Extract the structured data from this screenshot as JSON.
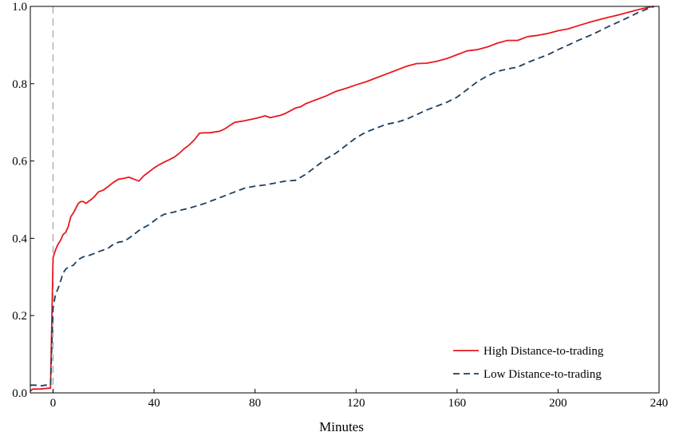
{
  "chart_data": {
    "type": "line",
    "title": "",
    "xlabel": "Minutes",
    "ylabel": "",
    "xlim": [
      -9,
      240
    ],
    "ylim": [
      0.0,
      1.0
    ],
    "xticks": [
      0,
      40,
      80,
      120,
      160,
      200,
      240
    ],
    "xtick_labels": [
      "0",
      "40",
      "80",
      "120",
      "160",
      "200",
      "240"
    ],
    "yticks": [
      0.0,
      0.2,
      0.4,
      0.6,
      0.8,
      1.0
    ],
    "ytick_labels": [
      "0.0",
      "0.2",
      "0.4",
      "0.6",
      "0.8",
      "1.0"
    ],
    "grid": false,
    "reference_line_x": 0,
    "legend_position": "bottom-right",
    "series": [
      {
        "name": "High Distance-to-trading",
        "color": "#e8191f",
        "style": "solid",
        "x": [
          -9,
          -8,
          -5,
          -2,
          -1,
          0,
          1,
          2,
          3,
          4,
          5,
          6,
          7,
          8,
          10,
          11,
          12,
          13,
          14,
          15,
          16,
          18,
          20,
          22,
          24,
          26,
          28,
          30,
          32,
          34,
          36,
          38,
          40,
          42,
          44,
          46,
          48,
          50,
          52,
          54,
          56,
          58,
          60,
          62,
          64,
          66,
          68,
          70,
          72,
          75,
          78,
          80,
          82,
          84,
          86,
          88,
          90,
          92,
          94,
          96,
          98,
          100,
          104,
          108,
          112,
          116,
          120,
          124,
          128,
          132,
          136,
          140,
          144,
          148,
          152,
          156,
          160,
          164,
          168,
          172,
          176,
          180,
          184,
          188,
          192,
          196,
          200,
          204,
          208,
          212,
          216,
          220,
          224,
          228,
          232,
          236,
          238
        ],
        "y": [
          0.005,
          0.01,
          0.01,
          0.012,
          0.012,
          0.35,
          0.37,
          0.385,
          0.395,
          0.41,
          0.415,
          0.43,
          0.455,
          0.465,
          0.49,
          0.495,
          0.495,
          0.49,
          0.495,
          0.5,
          0.505,
          0.52,
          0.525,
          0.535,
          0.545,
          0.553,
          0.555,
          0.558,
          0.553,
          0.548,
          0.562,
          0.572,
          0.582,
          0.59,
          0.597,
          0.603,
          0.61,
          0.62,
          0.632,
          0.642,
          0.655,
          0.672,
          0.673,
          0.673,
          0.675,
          0.677,
          0.683,
          0.692,
          0.7,
          0.703,
          0.707,
          0.71,
          0.713,
          0.717,
          0.712,
          0.715,
          0.718,
          0.723,
          0.73,
          0.737,
          0.74,
          0.748,
          0.758,
          0.768,
          0.78,
          0.788,
          0.797,
          0.805,
          0.815,
          0.825,
          0.835,
          0.845,
          0.852,
          0.853,
          0.858,
          0.865,
          0.875,
          0.885,
          0.888,
          0.895,
          0.905,
          0.912,
          0.912,
          0.922,
          0.925,
          0.93,
          0.937,
          0.942,
          0.95,
          0.958,
          0.965,
          0.972,
          0.978,
          0.985,
          0.992,
          0.998,
          1.0
        ]
      },
      {
        "name": "Low Distance-to-trading",
        "color": "#1f3f5f",
        "style": "dashed",
        "x": [
          -9,
          -7,
          -5,
          -3,
          -1,
          0,
          1,
          2,
          3,
          4,
          5,
          6,
          7,
          8,
          10,
          12,
          14,
          16,
          18,
          20,
          22,
          24,
          26,
          28,
          30,
          32,
          34,
          36,
          38,
          40,
          42,
          44,
          46,
          48,
          50,
          52,
          54,
          56,
          58,
          60,
          62,
          64,
          66,
          68,
          70,
          72,
          74,
          76,
          80,
          84,
          88,
          92,
          96,
          100,
          104,
          108,
          112,
          116,
          120,
          124,
          128,
          132,
          136,
          140,
          144,
          148,
          152,
          156,
          160,
          164,
          168,
          172,
          176,
          180,
          184,
          188,
          192,
          196,
          200,
          204,
          208,
          212,
          216,
          220,
          224,
          228,
          232,
          236,
          238
        ],
        "y": [
          0.02,
          0.02,
          0.018,
          0.02,
          0.02,
          0.22,
          0.255,
          0.27,
          0.29,
          0.31,
          0.32,
          0.325,
          0.328,
          0.33,
          0.345,
          0.352,
          0.355,
          0.36,
          0.365,
          0.37,
          0.375,
          0.385,
          0.39,
          0.392,
          0.4,
          0.41,
          0.42,
          0.428,
          0.435,
          0.445,
          0.455,
          0.462,
          0.465,
          0.468,
          0.472,
          0.475,
          0.478,
          0.482,
          0.486,
          0.49,
          0.495,
          0.5,
          0.505,
          0.51,
          0.515,
          0.52,
          0.525,
          0.53,
          0.535,
          0.538,
          0.543,
          0.548,
          0.55,
          0.565,
          0.585,
          0.605,
          0.62,
          0.64,
          0.66,
          0.675,
          0.685,
          0.695,
          0.7,
          0.708,
          0.72,
          0.732,
          0.742,
          0.752,
          0.765,
          0.785,
          0.805,
          0.82,
          0.832,
          0.838,
          0.843,
          0.855,
          0.865,
          0.875,
          0.888,
          0.9,
          0.912,
          0.923,
          0.935,
          0.948,
          0.96,
          0.972,
          0.985,
          0.995,
          1.0
        ]
      }
    ]
  }
}
